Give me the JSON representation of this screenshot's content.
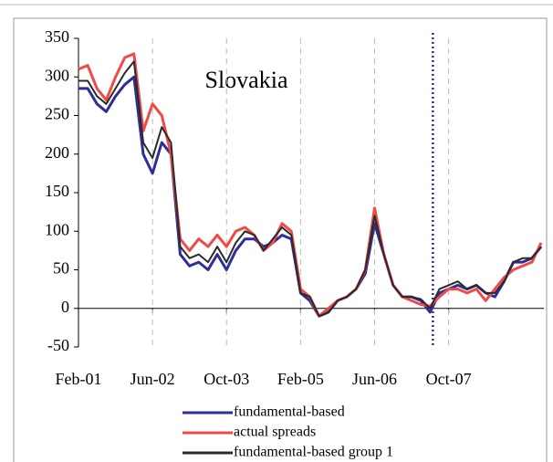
{
  "chart_data": {
    "type": "line",
    "title": "Slovakia",
    "categories": [
      "Feb-01",
      null,
      null,
      null,
      null,
      null,
      null,
      null,
      "Jun-02",
      null,
      null,
      null,
      null,
      null,
      null,
      null,
      "Oct-03",
      null,
      null,
      null,
      null,
      null,
      null,
      null,
      "Feb-05",
      null,
      null,
      null,
      null,
      null,
      null,
      null,
      "Jun-06",
      null,
      null,
      null,
      null,
      null,
      null,
      null,
      "Oct-07",
      null,
      null,
      null,
      null,
      null,
      null,
      null,
      null,
      null,
      null
    ],
    "series": [
      {
        "name": "fundamental-based",
        "color": "#2e2e99",
        "values": [
          285,
          285,
          265,
          255,
          275,
          290,
          300,
          200,
          175,
          215,
          200,
          70,
          55,
          60,
          50,
          70,
          50,
          75,
          90,
          90,
          80,
          85,
          95,
          90,
          20,
          10,
          -10,
          -5,
          10,
          15,
          25,
          45,
          110,
          70,
          30,
          15,
          15,
          10,
          -5,
          20,
          25,
          30,
          25,
          30,
          20,
          15,
          35,
          60,
          60,
          65,
          80
        ]
      },
      {
        "name": "actual spreads",
        "color": "#f04a46",
        "values": [
          310,
          315,
          285,
          270,
          300,
          325,
          330,
          230,
          265,
          250,
          200,
          90,
          75,
          90,
          80,
          95,
          80,
          100,
          105,
          95,
          75,
          85,
          110,
          100,
          25,
          15,
          -10,
          0,
          10,
          15,
          25,
          50,
          130,
          70,
          30,
          15,
          10,
          5,
          3,
          15,
          25,
          25,
          20,
          25,
          10,
          25,
          40,
          50,
          55,
          60,
          85
        ]
      },
      {
        "name": "fundamental-based group 1",
        "color": "#2a2a2a",
        "values": [
          295,
          295,
          275,
          265,
          285,
          305,
          320,
          215,
          195,
          235,
          215,
          80,
          65,
          70,
          60,
          80,
          60,
          85,
          100,
          95,
          75,
          90,
          105,
          95,
          20,
          15,
          -10,
          -5,
          10,
          15,
          25,
          50,
          120,
          70,
          30,
          15,
          15,
          12,
          0,
          25,
          30,
          35,
          25,
          30,
          20,
          20,
          35,
          60,
          65,
          65,
          80
        ]
      }
    ],
    "ylim": [
      -50,
      350
    ],
    "yticks": [
      -50,
      0,
      50,
      100,
      150,
      200,
      250,
      300,
      350
    ],
    "vline_at": 38.3,
    "vline_color": "#2e2e99",
    "grid": true
  }
}
